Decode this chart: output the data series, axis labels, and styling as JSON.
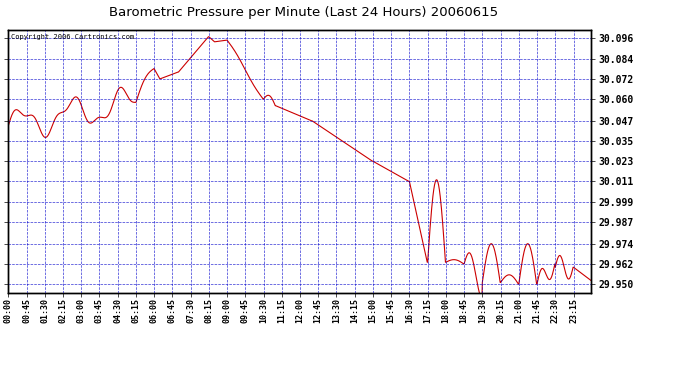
{
  "title": "Barometric Pressure per Minute (Last 24 Hours) 20060615",
  "copyright": "Copyright 2006 Cartronics.com",
  "line_color": "#cc0000",
  "grid_color": "#0000cc",
  "yticks": [
    29.95,
    29.962,
    29.974,
    29.987,
    29.999,
    30.011,
    30.023,
    30.035,
    30.047,
    30.06,
    30.072,
    30.084,
    30.096
  ],
  "ylim": [
    29.945,
    30.101
  ],
  "xtick_labels": [
    "00:00",
    "00:45",
    "01:30",
    "02:15",
    "03:00",
    "03:45",
    "04:30",
    "05:15",
    "06:00",
    "06:45",
    "07:30",
    "08:15",
    "09:00",
    "09:45",
    "10:30",
    "11:15",
    "12:00",
    "12:45",
    "13:30",
    "14:15",
    "15:00",
    "15:45",
    "16:30",
    "17:15",
    "18:00",
    "18:45",
    "19:30",
    "20:15",
    "21:00",
    "21:45",
    "22:30",
    "23:15"
  ]
}
